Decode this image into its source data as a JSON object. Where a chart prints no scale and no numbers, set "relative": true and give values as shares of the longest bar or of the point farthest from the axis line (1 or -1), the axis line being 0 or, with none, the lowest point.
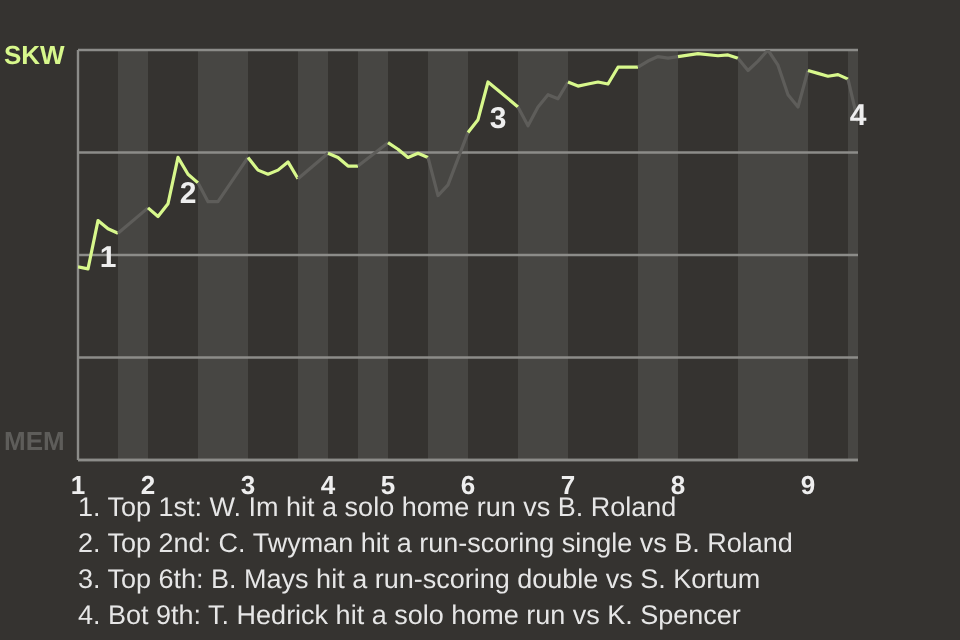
{
  "chart_data": {
    "type": "line",
    "relative": true,
    "categories": [
      "1",
      null,
      null,
      null,
      null,
      null,
      null,
      "2",
      null,
      null,
      null,
      null,
      null,
      null,
      null,
      null,
      null,
      "3",
      null,
      null,
      null,
      null,
      null,
      null,
      null,
      "4",
      null,
      null,
      null,
      null,
      null,
      "5",
      null,
      null,
      null,
      null,
      null,
      null,
      null,
      "6",
      null,
      null,
      null,
      null,
      null,
      null,
      null,
      null,
      null,
      "7",
      null,
      null,
      null,
      null,
      null,
      null,
      null,
      null,
      null,
      null,
      "8",
      null,
      null,
      null,
      null,
      null,
      null,
      null,
      null,
      null,
      null,
      null,
      null,
      "9",
      null,
      null,
      null,
      null,
      null
    ],
    "grid": "y",
    "series": [
      {
        "name": "SKW",
        "color": "#d8f88c",
        "values": [
          0.471,
          0.466,
          0.584,
          0.564,
          0.553,
          null,
          null,
          null,
          null,
          null,
          null,
          null,
          null,
          null,
          null,
          null,
          null,
          null,
          null,
          null,
          null,
          null,
          null,
          null,
          null,
          null,
          null,
          null,
          null,
          null,
          null,
          null,
          null,
          null,
          null,
          null,
          null,
          null,
          null,
          null,
          null,
          null,
          null,
          null,
          null,
          null,
          null,
          null,
          null,
          null,
          null,
          null,
          null,
          null,
          null,
          null,
          null,
          null,
          null,
          null,
          null,
          null,
          null,
          null,
          null,
          null,
          null,
          null,
          null,
          null,
          null,
          null,
          null,
          null,
          null,
          null,
          null,
          null,
          null
        ]
      },
      {
        "name": "MEM",
        "color": "#5e5d5a",
        "values": [
          null,
          null,
          null,
          null,
          0.553,
          null,
          null,
          0.615,
          null,
          null,
          null,
          null,
          null,
          null,
          null,
          null,
          null,
          null,
          null,
          null,
          null,
          null,
          null,
          null,
          null,
          null,
          null,
          null,
          null,
          null,
          null,
          null,
          null,
          null,
          null,
          null,
          null,
          null,
          null,
          null,
          null,
          null,
          null,
          null,
          null,
          null,
          null,
          null,
          null,
          null,
          null,
          null,
          null,
          null,
          null,
          null,
          null,
          null,
          null,
          null,
          null,
          null,
          null,
          null,
          null,
          null,
          null,
          null,
          null,
          null,
          null,
          null,
          null,
          null,
          null,
          null,
          null,
          null,
          null
        ]
      },
      {
        "color": "#d8f88c",
        "values": [
          null,
          null,
          null,
          null,
          null,
          null,
          null,
          0.615,
          0.594,
          0.625,
          0.738,
          0.697,
          0.676,
          null,
          null,
          null,
          null,
          null,
          null,
          null,
          null,
          null,
          null,
          null,
          null,
          null,
          null,
          null,
          null,
          null,
          null,
          null,
          null,
          null,
          null,
          null,
          null,
          null,
          null,
          null,
          null,
          null,
          null,
          null,
          null,
          null,
          null,
          null,
          null,
          null,
          null,
          null,
          null,
          null,
          null,
          null,
          null,
          null,
          null,
          null,
          null,
          null,
          null,
          null,
          null,
          null,
          null,
          null,
          null,
          null,
          null,
          null,
          null,
          null,
          null,
          null,
          null,
          null,
          null
        ]
      },
      {
        "color": "#5e5d5a",
        "values": [
          null,
          null,
          null,
          null,
          null,
          null,
          null,
          null,
          null,
          null,
          null,
          null,
          0.676,
          0.63,
          0.63,
          null,
          null,
          0.738,
          null,
          null,
          null,
          null,
          null,
          null,
          null,
          null,
          null,
          null,
          null,
          null,
          null,
          null,
          null,
          null,
          null,
          null,
          null,
          null,
          null,
          null,
          null,
          null,
          null,
          null,
          null,
          null,
          null,
          null,
          null,
          null,
          null,
          null,
          null,
          null,
          null,
          null,
          null,
          null,
          null,
          null,
          null,
          null,
          null,
          null,
          null,
          null,
          null,
          null,
          null,
          null,
          null,
          null,
          null,
          null,
          null,
          null,
          null,
          null,
          null
        ]
      },
      {
        "color": "#d8f88c",
        "values": [
          null,
          null,
          null,
          null,
          null,
          null,
          null,
          null,
          null,
          null,
          null,
          null,
          null,
          null,
          null,
          null,
          null,
          0.738,
          0.707,
          0.697,
          0.707,
          0.727,
          0.686,
          null,
          null,
          null,
          null,
          null,
          null,
          null,
          null,
          null,
          null,
          null,
          null,
          null,
          null,
          null,
          null,
          null,
          null,
          null,
          null,
          null,
          null,
          null,
          null,
          null,
          null,
          null,
          null,
          null,
          null,
          null,
          null,
          null,
          null,
          null,
          null,
          null,
          null,
          null,
          null,
          null,
          null,
          null,
          null,
          null,
          null,
          null,
          null,
          null,
          null,
          null,
          null,
          null,
          null,
          null,
          null
        ]
      },
      {
        "color": "#5e5d5a",
        "values": [
          null,
          null,
          null,
          null,
          null,
          null,
          null,
          null,
          null,
          null,
          null,
          null,
          null,
          null,
          null,
          null,
          null,
          null,
          null,
          null,
          null,
          null,
          0.686,
          null,
          null,
          0.748,
          null,
          null,
          null,
          null,
          null,
          null,
          null,
          null,
          null,
          null,
          null,
          null,
          null,
          null,
          null,
          null,
          null,
          null,
          null,
          null,
          null,
          null,
          null,
          null,
          null,
          null,
          null,
          null,
          null,
          null,
          null,
          null,
          null,
          null,
          null,
          null,
          null,
          null,
          null,
          null,
          null,
          null,
          null,
          null,
          null,
          null,
          null,
          null,
          null,
          null,
          null,
          null,
          null
        ]
      },
      {
        "color": "#d8f88c",
        "values": [
          null,
          null,
          null,
          null,
          null,
          null,
          null,
          null,
          null,
          null,
          null,
          null,
          null,
          null,
          null,
          null,
          null,
          null,
          null,
          null,
          null,
          null,
          null,
          null,
          null,
          0.748,
          0.738,
          0.717,
          0.717,
          null,
          null,
          null,
          null,
          null,
          null,
          null,
          null,
          null,
          null,
          null,
          null,
          null,
          null,
          null,
          null,
          null,
          null,
          null,
          null,
          null,
          null,
          null,
          null,
          null,
          null,
          null,
          null,
          null,
          null,
          null,
          null,
          null,
          null,
          null,
          null,
          null,
          null,
          null,
          null,
          null,
          null,
          null,
          null,
          null,
          null,
          null,
          null,
          null,
          null
        ]
      },
      {
        "color": "#5e5d5a",
        "values": [
          null,
          null,
          null,
          null,
          null,
          null,
          null,
          null,
          null,
          null,
          null,
          null,
          null,
          null,
          null,
          null,
          null,
          null,
          null,
          null,
          null,
          null,
          null,
          null,
          null,
          null,
          null,
          null,
          0.717,
          null,
          null,
          0.774,
          null,
          null,
          null,
          null,
          null,
          null,
          null,
          null,
          null,
          null,
          null,
          null,
          null,
          null,
          null,
          null,
          null,
          null,
          null,
          null,
          null,
          null,
          null,
          null,
          null,
          null,
          null,
          null,
          null,
          null,
          null,
          null,
          null,
          null,
          null,
          null,
          null,
          null,
          null,
          null,
          null,
          null,
          null,
          null,
          null,
          null,
          null
        ]
      },
      {
        "color": "#d8f88c",
        "values": [
          null,
          null,
          null,
          null,
          null,
          null,
          null,
          null,
          null,
          null,
          null,
          null,
          null,
          null,
          null,
          null,
          null,
          null,
          null,
          null,
          null,
          null,
          null,
          null,
          null,
          null,
          null,
          null,
          null,
          null,
          null,
          0.774,
          0.758,
          0.738,
          0.748,
          0.738,
          null,
          null,
          null,
          null,
          null,
          null,
          null,
          null,
          null,
          null,
          null,
          null,
          null,
          null,
          null,
          null,
          null,
          null,
          null,
          null,
          null,
          null,
          null,
          null,
          null,
          null,
          null,
          null,
          null,
          null,
          null,
          null,
          null,
          null,
          null,
          null,
          null,
          null,
          null,
          null,
          null,
          null,
          null
        ]
      },
      {
        "color": "#5e5d5a",
        "values": [
          null,
          null,
          null,
          null,
          null,
          null,
          null,
          null,
          null,
          null,
          null,
          null,
          null,
          null,
          null,
          null,
          null,
          null,
          null,
          null,
          null,
          null,
          null,
          null,
          null,
          null,
          null,
          null,
          null,
          null,
          null,
          null,
          null,
          null,
          null,
          0.738,
          0.645,
          0.671,
          null,
          0.799,
          null,
          null,
          null,
          null,
          null,
          null,
          null,
          null,
          null,
          null,
          null,
          null,
          null,
          null,
          null,
          null,
          null,
          null,
          null,
          null,
          null,
          null,
          null,
          null,
          null,
          null,
          null,
          null,
          null,
          null,
          null,
          null,
          null,
          null,
          null,
          null,
          null,
          null,
          null
        ]
      },
      {
        "color": "#d8f88c",
        "values": [
          null,
          null,
          null,
          null,
          null,
          null,
          null,
          null,
          null,
          null,
          null,
          null,
          null,
          null,
          null,
          null,
          null,
          null,
          null,
          null,
          null,
          null,
          null,
          null,
          null,
          null,
          null,
          null,
          null,
          null,
          null,
          null,
          null,
          null,
          null,
          null,
          null,
          null,
          null,
          0.799,
          0.83,
          0.922,
          0.902,
          null,
          0.861,
          null,
          null,
          null,
          null,
          null,
          null,
          null,
          null,
          null,
          null,
          null,
          null,
          null,
          null,
          null,
          null,
          null,
          null,
          null,
          null,
          null,
          null,
          null,
          null,
          null,
          null,
          null,
          null,
          null,
          null,
          null,
          null,
          null,
          null
        ]
      },
      {
        "color": "#5e5d5a",
        "values": [
          null,
          null,
          null,
          null,
          null,
          null,
          null,
          null,
          null,
          null,
          null,
          null,
          null,
          null,
          null,
          null,
          null,
          null,
          null,
          null,
          null,
          null,
          null,
          null,
          null,
          null,
          null,
          null,
          null,
          null,
          null,
          null,
          null,
          null,
          null,
          null,
          null,
          null,
          null,
          null,
          null,
          null,
          null,
          null,
          0.861,
          0.815,
          0.861,
          0.891,
          0.881,
          0.922,
          null,
          null,
          null,
          null,
          null,
          null,
          null,
          null,
          null,
          null,
          null,
          null,
          null,
          null,
          null,
          null,
          null,
          null,
          null,
          null,
          null,
          null,
          null,
          null,
          null,
          null,
          null,
          null,
          null
        ]
      },
      {
        "color": "#d8f88c",
        "values": [
          null,
          null,
          null,
          null,
          null,
          null,
          null,
          null,
          null,
          null,
          null,
          null,
          null,
          null,
          null,
          null,
          null,
          null,
          null,
          null,
          null,
          null,
          null,
          null,
          null,
          null,
          null,
          null,
          null,
          null,
          null,
          null,
          null,
          null,
          null,
          null,
          null,
          null,
          null,
          null,
          null,
          null,
          null,
          null,
          null,
          null,
          null,
          null,
          null,
          0.922,
          0.912,
          0.917,
          0.922,
          0.917,
          0.958,
          null,
          0.958,
          null,
          null,
          null,
          null,
          null,
          null,
          null,
          null,
          null,
          null,
          null,
          null,
          null,
          null,
          null,
          null,
          null,
          null,
          null,
          null,
          null,
          null
        ]
      },
      {
        "color": "#5e5d5a",
        "values": [
          null,
          null,
          null,
          null,
          null,
          null,
          null,
          null,
          null,
          null,
          null,
          null,
          null,
          null,
          null,
          null,
          null,
          null,
          null,
          null,
          null,
          null,
          null,
          null,
          null,
          null,
          null,
          null,
          null,
          null,
          null,
          null,
          null,
          null,
          null,
          null,
          null,
          null,
          null,
          null,
          null,
          null,
          null,
          null,
          null,
          null,
          null,
          null,
          null,
          null,
          null,
          null,
          null,
          null,
          null,
          null,
          0.958,
          0.973,
          0.984,
          0.98,
          0.984,
          null,
          null,
          null,
          null,
          null,
          null,
          null,
          null,
          null,
          null,
          null,
          null,
          null,
          null,
          null,
          null,
          null,
          null
        ]
      },
      {
        "color": "#d8f88c",
        "values": [
          null,
          null,
          null,
          null,
          null,
          null,
          null,
          null,
          null,
          null,
          null,
          null,
          null,
          null,
          null,
          null,
          null,
          null,
          null,
          null,
          null,
          null,
          null,
          null,
          null,
          null,
          null,
          null,
          null,
          null,
          null,
          null,
          null,
          null,
          null,
          null,
          null,
          null,
          null,
          null,
          null,
          null,
          null,
          null,
          null,
          null,
          null,
          null,
          null,
          null,
          null,
          null,
          null,
          null,
          null,
          null,
          null,
          null,
          null,
          null,
          0.984,
          null,
          0.991,
          null,
          0.986,
          0.988,
          0.98,
          null,
          null,
          null,
          null,
          null,
          null,
          null,
          null,
          null,
          null,
          null,
          null
        ]
      },
      {
        "color": "#5e5d5a",
        "values": [
          null,
          null,
          null,
          null,
          null,
          null,
          null,
          null,
          null,
          null,
          null,
          null,
          null,
          null,
          null,
          null,
          null,
          null,
          null,
          null,
          null,
          null,
          null,
          null,
          null,
          null,
          null,
          null,
          null,
          null,
          null,
          null,
          null,
          null,
          null,
          null,
          null,
          null,
          null,
          null,
          null,
          null,
          null,
          null,
          null,
          null,
          null,
          null,
          null,
          null,
          null,
          null,
          null,
          null,
          null,
          null,
          null,
          null,
          null,
          null,
          null,
          null,
          null,
          null,
          null,
          null,
          0.98,
          0.95,
          0.973,
          1,
          0.963,
          0.891,
          0.861,
          0.95,
          null,
          null,
          null,
          null,
          null
        ]
      },
      {
        "color": "#d8f88c",
        "values": [
          null,
          null,
          null,
          null,
          null,
          null,
          null,
          null,
          null,
          null,
          null,
          null,
          null,
          null,
          null,
          null,
          null,
          null,
          null,
          null,
          null,
          null,
          null,
          null,
          null,
          null,
          null,
          null,
          null,
          null,
          null,
          null,
          null,
          null,
          null,
          null,
          null,
          null,
          null,
          null,
          null,
          null,
          null,
          null,
          null,
          null,
          null,
          null,
          null,
          null,
          null,
          null,
          null,
          null,
          null,
          null,
          null,
          null,
          null,
          null,
          null,
          null,
          null,
          null,
          null,
          null,
          null,
          null,
          null,
          null,
          null,
          null,
          null,
          0.95,
          0.943,
          0.936,
          0.94,
          0.929,
          null
        ]
      },
      {
        "color": "#5e5d5a",
        "values": [
          null,
          null,
          null,
          null,
          null,
          null,
          null,
          null,
          null,
          null,
          null,
          null,
          null,
          null,
          null,
          null,
          null,
          null,
          null,
          null,
          null,
          null,
          null,
          null,
          null,
          null,
          null,
          null,
          null,
          null,
          null,
          null,
          null,
          null,
          null,
          null,
          null,
          null,
          null,
          null,
          null,
          null,
          null,
          null,
          null,
          null,
          null,
          null,
          null,
          null,
          null,
          null,
          null,
          null,
          null,
          null,
          null,
          null,
          null,
          null,
          null,
          null,
          null,
          null,
          null,
          null,
          null,
          null,
          null,
          null,
          null,
          null,
          null,
          null,
          null,
          null,
          null,
          0.929,
          0.825
        ]
      }
    ],
    "annotations": [
      {
        "text": "1",
        "y": 0.584
      },
      {
        "text": "2",
        "y": 0.738
      },
      {
        "text": "3",
        "y": 0.922
      },
      {
        "text": "4",
        "y": 0.929
      },
      "1. Top 1st: W. Im hit a solo home run vs B. Roland",
      "2. Top 2nd: C. Twyman hit a run-scoring single vs B. Roland",
      "3. Top 6th: B. Mays hit a run-scoring double vs S. Kortum",
      "4. Bot 9th: T. Hedrick hit a solo home run vs K. Spencer"
    ]
  }
}
